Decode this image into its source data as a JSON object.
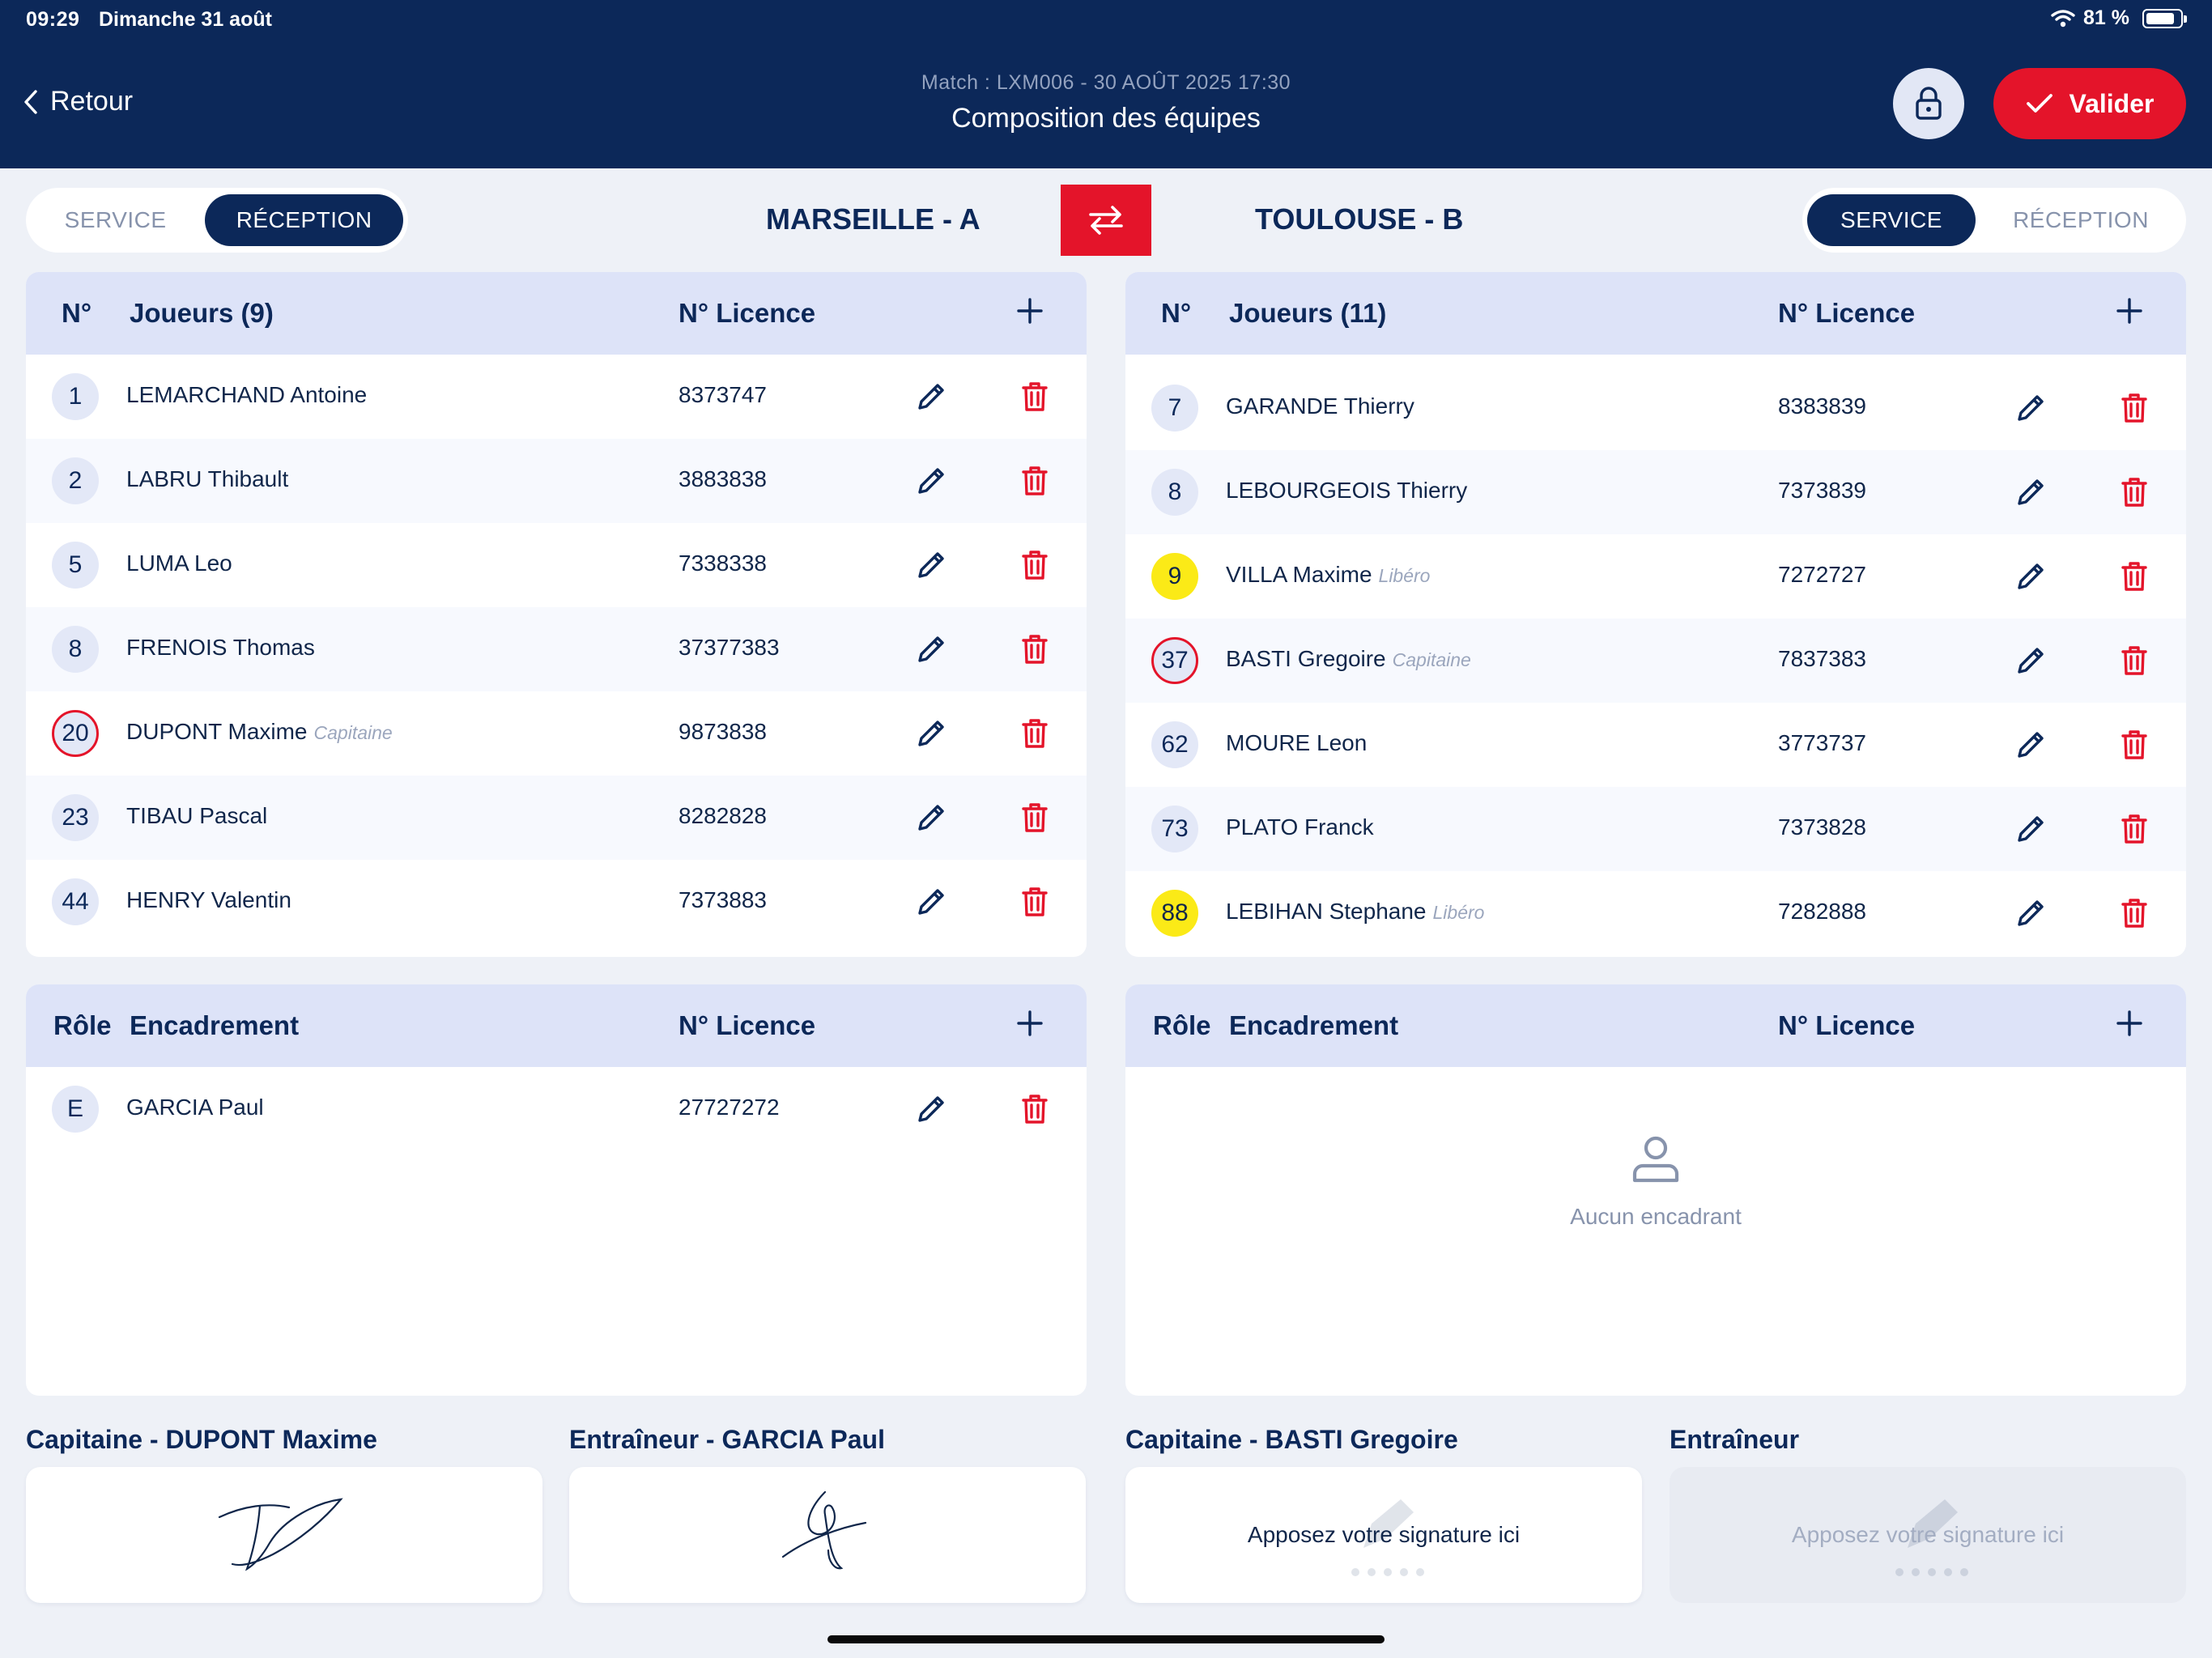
{
  "status": {
    "time": "09:29",
    "date": "Dimanche 31 août",
    "battery": "81 %",
    "battery_level": 0.81
  },
  "header": {
    "back_label": "Retour",
    "match_info": "Match : LXM006 - 30 AOÛT 2025 17:30",
    "title": "Composition des équipes",
    "validate_label": "Valider"
  },
  "colors": {
    "navy": "#0C2859",
    "accent_red": "#E4142A",
    "libero_yellow": "#FBEA17",
    "header_row": "#DDE3F8"
  },
  "team_a": {
    "name": "MARSEILLE - A",
    "toggle": {
      "service": "SERVICE",
      "reception": "RÉCEPTION",
      "active": "reception"
    },
    "players_header": {
      "num": "N°",
      "title": "Joueurs (9)",
      "licence": "N° Licence"
    },
    "players": [
      {
        "num": "1",
        "name": "LEMARCHAND Antoine",
        "tag": "",
        "licence": "8373747",
        "role": ""
      },
      {
        "num": "2",
        "name": "LABRU Thibault",
        "tag": "",
        "licence": "3883838",
        "role": ""
      },
      {
        "num": "5",
        "name": "LUMA Leo",
        "tag": "",
        "licence": "7338338",
        "role": ""
      },
      {
        "num": "8",
        "name": "FRENOIS Thomas",
        "tag": "",
        "licence": "37377383",
        "role": ""
      },
      {
        "num": "20",
        "name": "DUPONT Maxime",
        "tag": "Capitaine",
        "licence": "9873838",
        "role": "captain"
      },
      {
        "num": "23",
        "name": "TIBAU Pascal",
        "tag": "",
        "licence": "8282828",
        "role": ""
      },
      {
        "num": "44",
        "name": "HENRY Valentin",
        "tag": "",
        "licence": "7373883",
        "role": ""
      }
    ],
    "staff_header": {
      "role": "Rôle",
      "title": "Encadrement",
      "licence": "N° Licence"
    },
    "staff": [
      {
        "role": "E",
        "name": "GARCIA Paul",
        "licence": "27727272"
      }
    ]
  },
  "team_b": {
    "name": "TOULOUSE - B",
    "toggle": {
      "service": "SERVICE",
      "reception": "RÉCEPTION",
      "active": "service"
    },
    "players_header": {
      "num": "N°",
      "title": "Joueurs (11)",
      "licence": "N° Licence"
    },
    "players": [
      {
        "num": "7",
        "name": "GARANDE Thierry",
        "tag": "",
        "licence": "8383839",
        "role": ""
      },
      {
        "num": "8",
        "name": "LEBOURGEOIS Thierry",
        "tag": "",
        "licence": "7373839",
        "role": ""
      },
      {
        "num": "9",
        "name": "VILLA Maxime",
        "tag": "Libéro",
        "licence": "7272727",
        "role": "libero"
      },
      {
        "num": "37",
        "name": "BASTI Gregoire",
        "tag": "Capitaine",
        "licence": "7837383",
        "role": "captain"
      },
      {
        "num": "62",
        "name": "MOURE Leon",
        "tag": "",
        "licence": "3773737",
        "role": ""
      },
      {
        "num": "73",
        "name": "PLATO Franck",
        "tag": "",
        "licence": "7373828",
        "role": ""
      },
      {
        "num": "88",
        "name": "LEBIHAN Stephane",
        "tag": "Libéro",
        "licence": "7282888",
        "role": "libero"
      }
    ],
    "staff_header": {
      "role": "Rôle",
      "title": "Encadrement",
      "licence": "N° Licence"
    },
    "staff_empty": "Aucun encadrant"
  },
  "signatures": [
    {
      "label": "Capitaine - DUPONT Maxime",
      "signed": true,
      "placeholder": ""
    },
    {
      "label": "Entraîneur - GARCIA Paul",
      "signed": true,
      "placeholder": ""
    },
    {
      "label": "Capitaine - BASTI Gregoire",
      "signed": false,
      "placeholder": "Apposez votre signature ici"
    },
    {
      "label": "Entraîneur",
      "signed": false,
      "disabled": true,
      "placeholder": "Apposez votre signature ici"
    }
  ]
}
